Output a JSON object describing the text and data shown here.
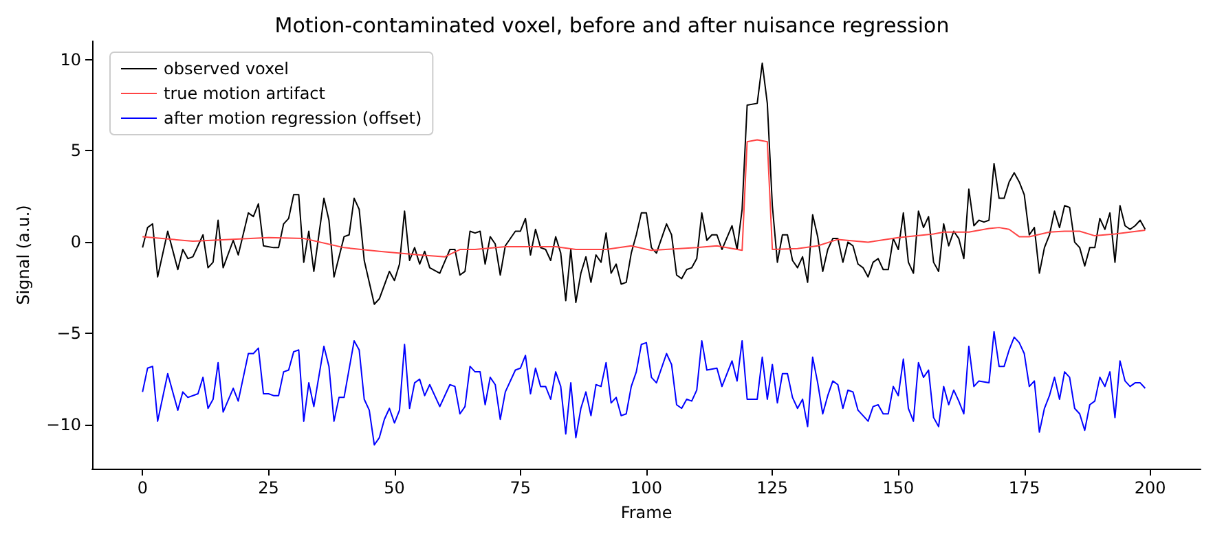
{
  "chart_data": {
    "type": "line",
    "title": "Motion-contaminated voxel, before and after nuisance regression",
    "xlabel": "Frame",
    "ylabel": "Signal (a.u.)",
    "xlim": [
      -10,
      210
    ],
    "xticks": [
      0,
      25,
      50,
      75,
      100,
      125,
      150,
      175,
      200
    ],
    "ylim": [
      -12.4,
      11
    ],
    "yticks": [
      -10,
      -5,
      0,
      5,
      10
    ],
    "grid": false,
    "legend": "top left",
    "marker": "none",
    "line_style": "solid",
    "series": [
      {
        "name": "observed voxel",
        "color": "#000000",
        "x": [
          0,
          1,
          2,
          3,
          5,
          7,
          8,
          9,
          10,
          12,
          13,
          14,
          15,
          16,
          18,
          19,
          21,
          22,
          23,
          24,
          26,
          27,
          28,
          29,
          30,
          31,
          32,
          33,
          34,
          36,
          37,
          38,
          40,
          41,
          42,
          43,
          44,
          46,
          47,
          49,
          50,
          51,
          52,
          53,
          54,
          55,
          56,
          57,
          59,
          61,
          62,
          63,
          64,
          65,
          66,
          67,
          68,
          69,
          70,
          71,
          72,
          74,
          75,
          76,
          77,
          78,
          79,
          80,
          81,
          82,
          83,
          84,
          85,
          86,
          87,
          88,
          89,
          90,
          91,
          92,
          93,
          94,
          95,
          96,
          97,
          98,
          99,
          100,
          101,
          102,
          103,
          104,
          105,
          106,
          107,
          108,
          109,
          110,
          111,
          112,
          113,
          114,
          115,
          117,
          118,
          119,
          120,
          122,
          123,
          124,
          125,
          126,
          127,
          128,
          129,
          130,
          131,
          132,
          133,
          134,
          135,
          136,
          137,
          138,
          139,
          140,
          141,
          142,
          143,
          144,
          145,
          146,
          147,
          148,
          149,
          150,
          151,
          152,
          153,
          154,
          155,
          156,
          157,
          158,
          159,
          160,
          161,
          162,
          163,
          164,
          165,
          166,
          167,
          168,
          169,
          170,
          171,
          172,
          173,
          174,
          175,
          176,
          177,
          178,
          179,
          180,
          181,
          182,
          183,
          184,
          185,
          186,
          187,
          188,
          189,
          190,
          191,
          192,
          193,
          194,
          195,
          196,
          197,
          198,
          199
        ],
        "values": [
          -0.3,
          0.8,
          1.0,
          -1.9,
          0.6,
          -1.5,
          -0.4,
          -0.9,
          -0.8,
          0.4,
          -1.4,
          -1.1,
          1.2,
          -1.4,
          0.1,
          -0.7,
          1.6,
          1.4,
          2.1,
          -0.2,
          -0.3,
          -0.3,
          1.0,
          1.3,
          2.6,
          2.6,
          -1.1,
          0.6,
          -1.6,
          2.4,
          1.2,
          -1.9,
          0.3,
          0.4,
          2.4,
          1.8,
          -1.0,
          -3.4,
          -3.1,
          -1.6,
          -2.1,
          -1.2,
          1.7,
          -1.0,
          -0.3,
          -1.2,
          -0.5,
          -1.4,
          -1.7,
          -0.4,
          -0.4,
          -1.8,
          -1.6,
          0.6,
          0.5,
          0.6,
          -1.2,
          0.3,
          -0.1,
          -1.8,
          -0.2,
          0.6,
          0.6,
          1.3,
          -0.7,
          0.7,
          -0.3,
          -0.4,
          -1.0,
          0.3,
          -0.6,
          -3.2,
          -0.4,
          -3.3,
          -1.7,
          -0.8,
          -2.2,
          -0.7,
          -1.1,
          0.5,
          -1.7,
          -1.2,
          -2.3,
          -2.2,
          -0.6,
          0.4,
          1.6,
          1.6,
          -0.3,
          -0.6,
          0.2,
          1.0,
          0.4,
          -1.8,
          -2.0,
          -1.5,
          -1.4,
          -0.9,
          1.6,
          0.1,
          0.4,
          0.4,
          -0.4,
          0.9,
          -0.4,
          1.8,
          7.5,
          7.6,
          9.8,
          7.6,
          2.0,
          -1.1,
          0.4,
          0.4,
          -1.0,
          -1.4,
          -0.8,
          -2.2,
          1.5,
          0.3,
          -1.6,
          -0.4,
          0.2,
          0.2,
          -1.1,
          0.0,
          -0.2,
          -1.2,
          -1.4,
          -1.9,
          -1.1,
          -0.9,
          -1.5,
          -1.5,
          0.2,
          -0.4,
          1.6,
          -1.1,
          -1.7,
          1.7,
          0.8,
          1.4,
          -1.1,
          -1.6,
          1.0,
          -0.2,
          0.6,
          0.2,
          -0.9,
          2.9,
          0.9,
          1.2,
          1.1,
          1.2,
          4.3,
          2.4,
          2.4,
          3.3,
          3.8,
          3.3,
          2.6,
          0.4,
          0.8,
          -1.7,
          -0.3,
          0.4,
          1.7,
          0.8,
          2.0,
          1.9,
          0.0,
          -0.3,
          -1.3,
          -0.3,
          -0.3,
          1.3,
          0.7,
          1.6,
          -1.1,
          2.0,
          0.9,
          0.7,
          0.9,
          1.2,
          0.7
        ]
      },
      {
        "name": "true motion artifact",
        "color": "#ff4444",
        "x": [
          0,
          10,
          25,
          32,
          40,
          47,
          55,
          60,
          63,
          66,
          72,
          82,
          86,
          92,
          97,
          101,
          110,
          114,
          119,
          120,
          122,
          124,
          125,
          130,
          134,
          138,
          144,
          150,
          157,
          159,
          164,
          168,
          170,
          172,
          174,
          176,
          180,
          183,
          186,
          189,
          193,
          199
        ],
        "values": [
          0.3,
          0.05,
          0.25,
          0.2,
          -0.3,
          -0.5,
          -0.7,
          -0.8,
          -0.4,
          -0.4,
          -0.25,
          -0.25,
          -0.4,
          -0.4,
          -0.2,
          -0.45,
          -0.3,
          -0.2,
          -0.45,
          5.5,
          5.6,
          5.5,
          -0.4,
          -0.35,
          -0.2,
          0.15,
          0.0,
          0.25,
          0.45,
          0.55,
          0.55,
          0.75,
          0.8,
          0.7,
          0.3,
          0.3,
          0.55,
          0.6,
          0.6,
          0.35,
          0.45,
          0.65
        ]
      },
      {
        "name": "after motion regression (offset)",
        "color": "#0000ff",
        "x": [
          0,
          1,
          2,
          3,
          5,
          7,
          8,
          9,
          11,
          12,
          13,
          14,
          15,
          16,
          18,
          19,
          21,
          22,
          23,
          24,
          25,
          26,
          27,
          28,
          29,
          30,
          31,
          32,
          33,
          34,
          36,
          37,
          38,
          39,
          40,
          42,
          43,
          44,
          45,
          46,
          47,
          48,
          49,
          50,
          51,
          52,
          53,
          54,
          55,
          56,
          57,
          59,
          61,
          62,
          63,
          64,
          65,
          66,
          67,
          68,
          69,
          70,
          71,
          72,
          74,
          75,
          76,
          77,
          78,
          79,
          80,
          81,
          82,
          83,
          84,
          85,
          86,
          87,
          88,
          89,
          90,
          91,
          92,
          93,
          94,
          95,
          96,
          97,
          98,
          99,
          100,
          101,
          102,
          104,
          105,
          106,
          107,
          108,
          109,
          110,
          111,
          112,
          114,
          115,
          117,
          118,
          119,
          120,
          122,
          123,
          124,
          125,
          126,
          127,
          128,
          129,
          130,
          131,
          132,
          133,
          134,
          135,
          136,
          137,
          138,
          139,
          140,
          141,
          142,
          143,
          144,
          145,
          146,
          147,
          148,
          149,
          150,
          151,
          152,
          153,
          154,
          155,
          156,
          157,
          158,
          159,
          160,
          161,
          162,
          163,
          164,
          165,
          166,
          168,
          169,
          170,
          171,
          172,
          173,
          174,
          175,
          176,
          177,
          178,
          179,
          180,
          181,
          182,
          183,
          184,
          185,
          186,
          187,
          188,
          189,
          190,
          191,
          192,
          193,
          194,
          195,
          196,
          197,
          198,
          199
        ],
        "values": [
          -8.2,
          -6.9,
          -6.8,
          -9.8,
          -7.2,
          -9.2,
          -8.2,
          -8.5,
          -8.3,
          -7.4,
          -9.1,
          -8.6,
          -6.6,
          -9.3,
          -8.0,
          -8.7,
          -6.1,
          -6.1,
          -5.8,
          -8.3,
          -8.3,
          -8.4,
          -8.4,
          -7.1,
          -7.0,
          -6.0,
          -5.9,
          -9.8,
          -7.7,
          -9.0,
          -5.7,
          -6.8,
          -9.8,
          -8.5,
          -8.5,
          -5.4,
          -5.9,
          -8.6,
          -9.2,
          -11.1,
          -10.7,
          -9.7,
          -9.1,
          -9.9,
          -9.2,
          -5.6,
          -9.1,
          -7.7,
          -7.5,
          -8.4,
          -7.8,
          -9.0,
          -7.8,
          -7.9,
          -9.4,
          -9.0,
          -6.8,
          -7.1,
          -7.1,
          -8.9,
          -7.4,
          -7.8,
          -9.7,
          -8.2,
          -7.0,
          -6.9,
          -6.2,
          -8.3,
          -6.9,
          -7.9,
          -7.9,
          -8.6,
          -7.1,
          -7.9,
          -10.5,
          -7.7,
          -10.7,
          -9.1,
          -8.2,
          -9.5,
          -7.8,
          -7.9,
          -6.6,
          -8.8,
          -8.5,
          -9.5,
          -9.4,
          -7.9,
          -7.1,
          -5.6,
          -5.5,
          -7.4,
          -7.7,
          -6.1,
          -6.7,
          -8.9,
          -9.1,
          -8.6,
          -8.7,
          -8.1,
          -5.4,
          -7.0,
          -6.9,
          -7.9,
          -6.5,
          -7.6,
          -5.4,
          -8.6,
          -8.6,
          -6.3,
          -8.6,
          -6.7,
          -8.8,
          -7.2,
          -7.2,
          -8.5,
          -9.1,
          -8.6,
          -10.1,
          -6.3,
          -7.7,
          -9.4,
          -8.4,
          -7.6,
          -7.8,
          -9.1,
          -8.1,
          -8.2,
          -9.2,
          -9.5,
          -9.8,
          -9.0,
          -8.9,
          -9.4,
          -9.4,
          -7.9,
          -8.4,
          -6.4,
          -9.1,
          -9.8,
          -6.6,
          -7.4,
          -7.0,
          -9.6,
          -10.1,
          -7.9,
          -8.9,
          -8.1,
          -8.7,
          -9.4,
          -5.7,
          -7.9,
          -7.6,
          -7.7,
          -4.9,
          -6.8,
          -6.8,
          -5.9,
          -5.2,
          -5.5,
          -6.1,
          -7.9,
          -7.6,
          -10.4,
          -9.1,
          -8.4,
          -7.4,
          -8.6,
          -7.1,
          -7.4,
          -9.1,
          -9.4,
          -10.3,
          -8.9,
          -8.7,
          -7.4,
          -7.9,
          -7.1,
          -9.6,
          -6.5,
          -7.6,
          -7.9,
          -7.7,
          -7.7,
          -8.0
        ]
      }
    ]
  }
}
